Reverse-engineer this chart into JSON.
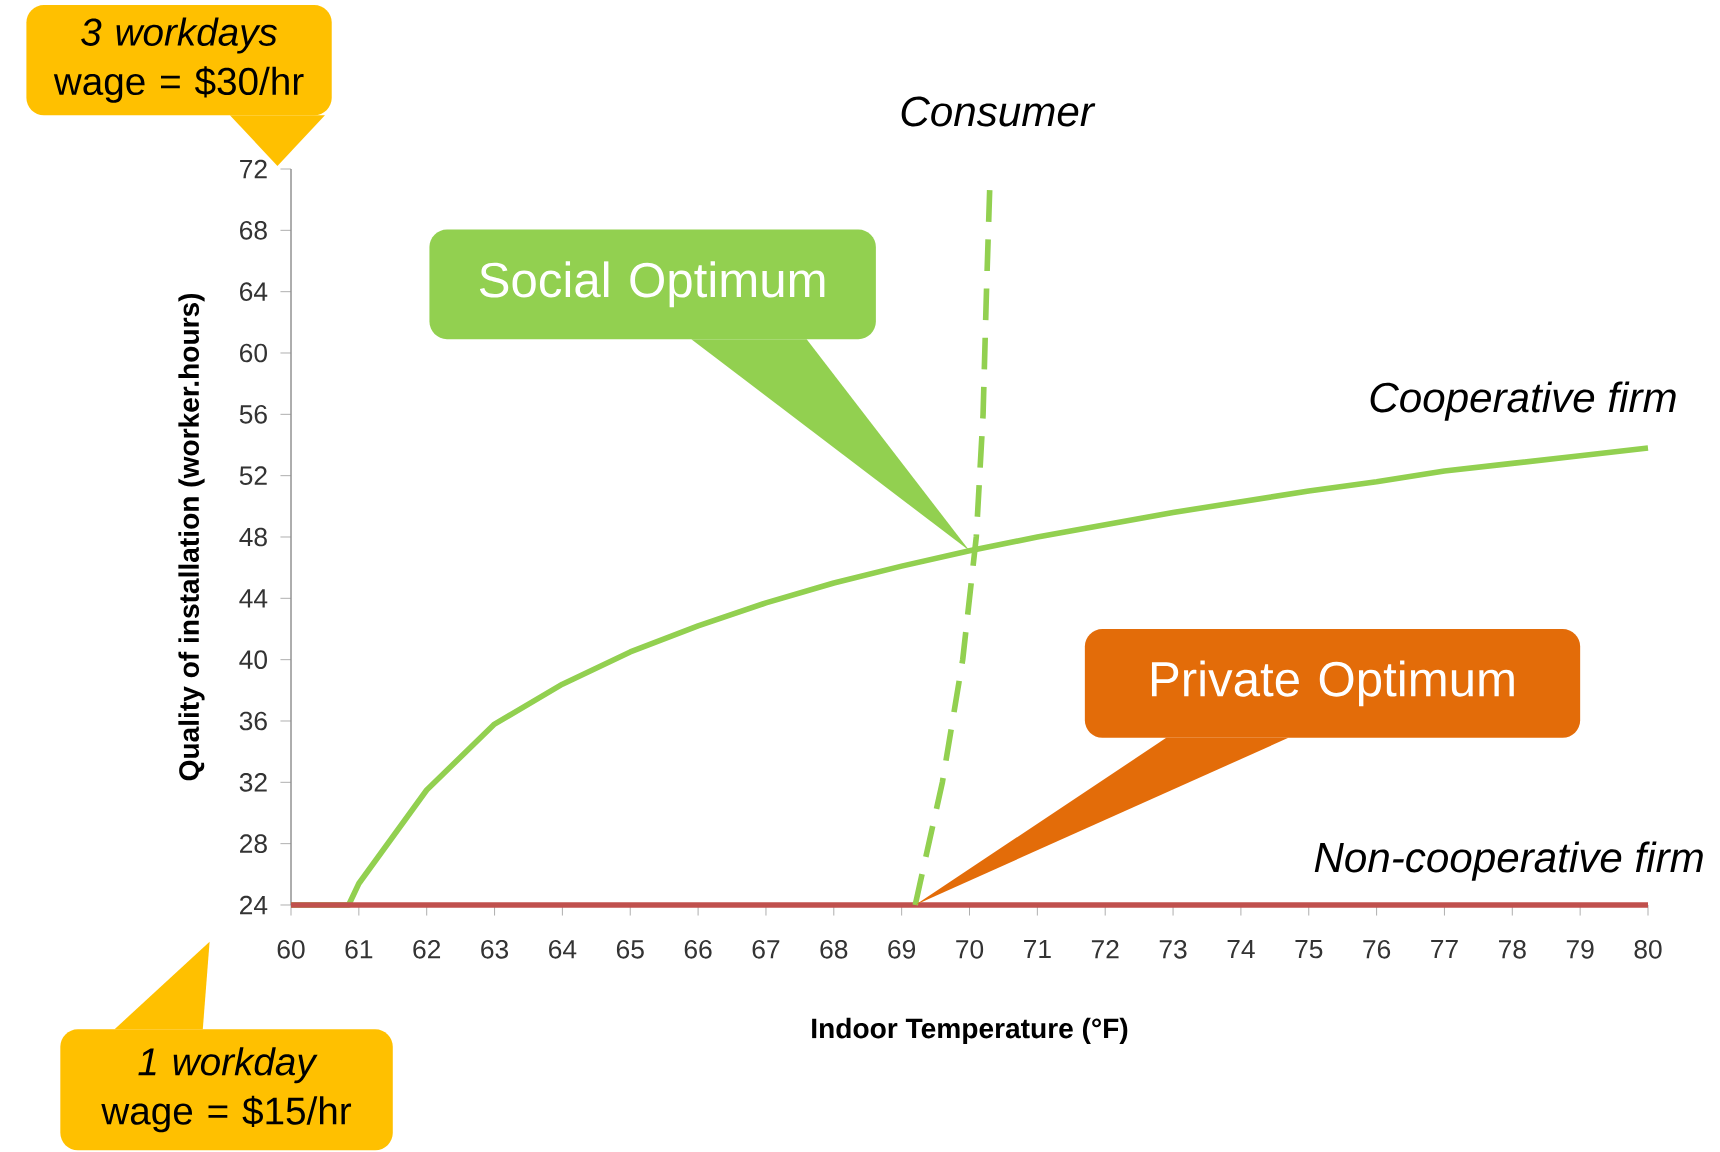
{
  "chart_data": {
    "type": "line",
    "xlabel": "Indoor Temperature (°F)",
    "ylabel": "Quality of installation (worker.hours)",
    "xlim": [
      60,
      80
    ],
    "ylim": [
      24,
      72
    ],
    "xticks": [
      60,
      61,
      62,
      63,
      64,
      65,
      66,
      67,
      68,
      69,
      70,
      71,
      72,
      73,
      74,
      75,
      76,
      77,
      78,
      79,
      80
    ],
    "yticks": [
      24,
      28,
      32,
      36,
      40,
      44,
      48,
      52,
      56,
      60,
      64,
      68,
      72
    ],
    "marker": "none",
    "series": [
      {
        "name": "Cooperative firm",
        "color": "#92d050",
        "x": [
          60,
          60.85,
          61,
          62,
          63,
          64,
          65,
          66,
          67,
          68,
          69,
          70,
          71,
          72,
          73,
          74,
          75,
          76,
          77,
          78,
          79,
          80
        ],
        "values": [
          24,
          24,
          25.4,
          31.5,
          35.8,
          38.4,
          40.5,
          42.2,
          43.7,
          45.0,
          46.1,
          47.1,
          48.0,
          48.8,
          49.6,
          50.3,
          51.0,
          51.6,
          52.3,
          52.8,
          53.3,
          53.8
        ]
      },
      {
        "name": "Non-cooperative firm",
        "color": "#c0504d",
        "x": [
          60,
          80
        ],
        "values": [
          24,
          24
        ]
      },
      {
        "name": "Consumer",
        "color": "#92d050",
        "line_style": "dashed",
        "x": [
          69.2,
          69.6,
          69.9,
          70.1,
          70.2,
          70.25,
          70.3
        ],
        "values": [
          24,
          32,
          40,
          48,
          56,
          64,
          71
        ]
      }
    ],
    "annotations": [
      "*3 workdays* wage = $30/hr",
      "*1 workday* wage = $15/hr",
      "Social Optimum",
      {
        "text": "Private Optimum",
        "x": 69.2,
        "y": 24
      }
    ]
  }
}
